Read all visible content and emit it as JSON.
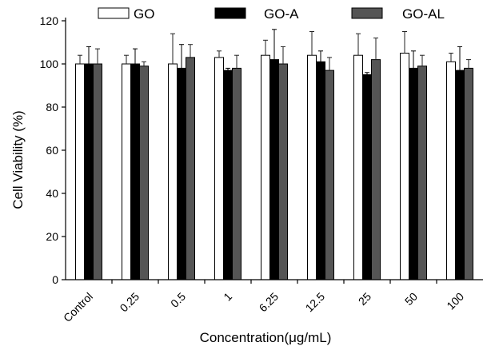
{
  "chart_data": {
    "type": "bar",
    "title": "",
    "xlabel": "Concentration(μg/mL)",
    "ylabel": "Cell Viability (%)",
    "ylim": [
      0,
      120
    ],
    "yticks": [
      0,
      20,
      40,
      60,
      80,
      100,
      120
    ],
    "grid": false,
    "legend_position": "top",
    "categories": [
      "Control",
      "0.25",
      "0.5",
      "1",
      "6.25",
      "12.5",
      "25",
      "50",
      "100"
    ],
    "series": [
      {
        "name": "GO",
        "color": "#ffffff",
        "values": [
          100,
          100,
          100,
          103,
          104,
          104,
          104,
          105,
          101
        ],
        "errors": [
          4,
          4,
          14,
          3,
          7,
          11,
          10,
          10,
          4
        ]
      },
      {
        "name": "GO-A",
        "color": "#000000",
        "values": [
          100,
          100,
          98,
          97,
          102,
          101,
          95,
          98,
          97
        ],
        "errors": [
          8,
          7,
          11,
          1,
          14,
          5,
          1,
          8,
          11
        ]
      },
      {
        "name": "GO-AL",
        "color": "#555555",
        "values": [
          100,
          99,
          103,
          98,
          100,
          97,
          102,
          99,
          98
        ],
        "errors": [
          7,
          2,
          6,
          6,
          8,
          6,
          10,
          5,
          4
        ]
      }
    ]
  }
}
